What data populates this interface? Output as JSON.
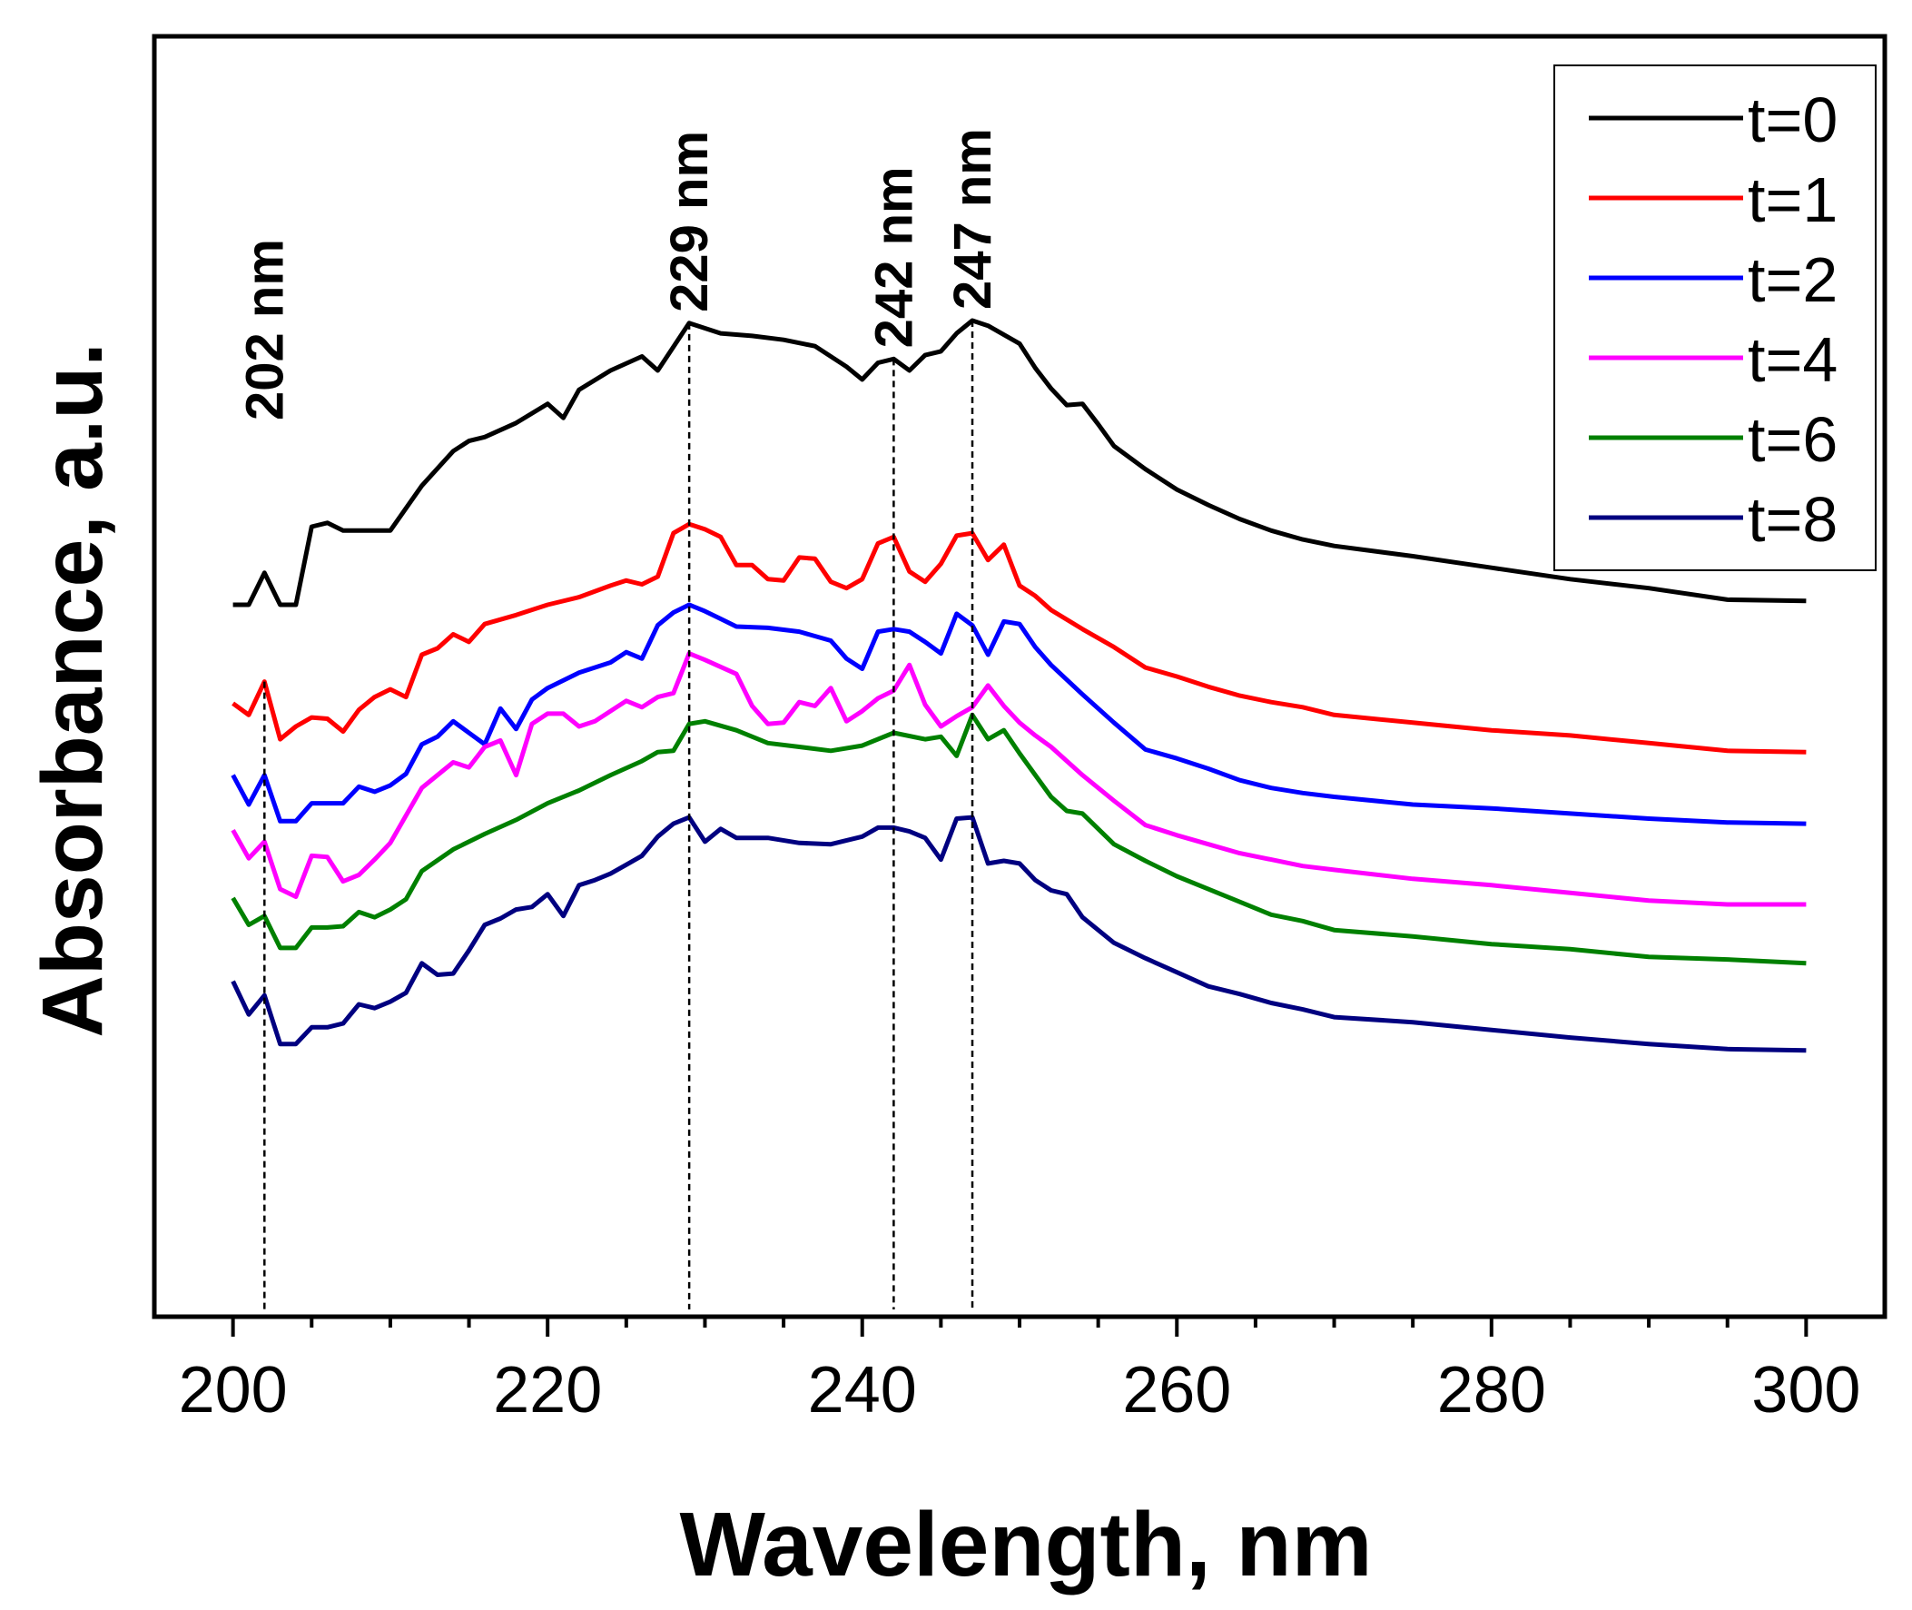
{
  "chart_data": {
    "type": "line",
    "title": "",
    "xlabel": "Wavelength, nm",
    "ylabel": "Absorbance, a.u.",
    "xlim": [
      195,
      305
    ],
    "ylim": [
      0,
      100
    ],
    "x_ticks": [
      200,
      220,
      240,
      260,
      280,
      300
    ],
    "x_tick_labels": [
      "200",
      "220",
      "240",
      "260",
      "280",
      "300"
    ],
    "y_ticks_shown": false,
    "legend_position": "top-right",
    "annotations": [
      {
        "label": "202 nm",
        "x": 202
      },
      {
        "label": "229 nm",
        "x": 229
      },
      {
        "label": "242 nm",
        "x": 242
      },
      {
        "label": "247 nm",
        "x": 247
      }
    ],
    "series": [
      {
        "name": "t=0",
        "color": "#000000",
        "x": [
          200,
          201,
          202,
          203,
          204,
          205,
          206,
          207,
          208,
          210,
          212,
          214,
          215,
          216,
          218,
          220,
          221,
          222,
          224,
          226,
          227,
          229,
          231,
          233,
          235,
          237,
          239,
          240,
          241,
          242,
          243,
          244,
          245,
          246,
          247,
          248,
          250,
          251,
          252,
          253,
          254,
          255,
          256,
          258,
          260,
          262,
          264,
          266,
          268,
          270,
          275,
          280,
          285,
          290,
          295,
          300
        ],
        "y": [
          55.6,
          55.6,
          58.1,
          55.6,
          55.6,
          61.7,
          62.0,
          61.4,
          61.4,
          61.4,
          64.9,
          67.6,
          68.4,
          68.7,
          69.8,
          71.3,
          70.2,
          72.4,
          73.9,
          75.0,
          73.9,
          77.6,
          76.8,
          76.6,
          76.3,
          75.8,
          74.2,
          73.2,
          74.5,
          74.8,
          73.9,
          75.1,
          75.4,
          76.8,
          77.8,
          77.4,
          76.0,
          74.1,
          72.5,
          71.2,
          71.3,
          69.7,
          68.0,
          66.2,
          64.6,
          63.4,
          62.3,
          61.4,
          60.7,
          60.2,
          59.4,
          58.5,
          57.6,
          56.9,
          56.0,
          55.9
        ]
      },
      {
        "name": "t=1",
        "color": "#ff0000",
        "x": [
          200,
          201,
          202,
          203,
          204,
          205,
          206,
          207,
          208,
          209,
          210,
          211,
          212,
          213,
          214,
          215,
          216,
          218,
          220,
          222,
          224,
          225,
          226,
          227,
          228,
          229,
          230,
          231,
          232,
          233,
          234,
          235,
          236,
          237,
          238,
          239,
          240,
          241,
          242,
          243,
          244,
          245,
          246,
          247,
          248,
          249,
          250,
          251,
          252,
          254,
          256,
          258,
          260,
          262,
          264,
          266,
          268,
          270,
          275,
          280,
          285,
          290,
          295,
          300
        ],
        "y": [
          47.9,
          47.0,
          49.6,
          45.1,
          46.1,
          46.8,
          46.7,
          45.7,
          47.4,
          48.4,
          49.0,
          48.4,
          51.7,
          52.2,
          53.3,
          52.7,
          54.1,
          54.8,
          55.6,
          56.2,
          57.1,
          57.5,
          57.2,
          57.8,
          61.2,
          61.9,
          61.5,
          60.9,
          58.7,
          58.7,
          57.6,
          57.5,
          59.3,
          59.2,
          57.4,
          56.9,
          57.6,
          60.4,
          60.9,
          58.2,
          57.4,
          58.8,
          61.0,
          61.2,
          59.1,
          60.3,
          57.1,
          56.3,
          55.2,
          53.7,
          52.3,
          50.7,
          50.0,
          49.2,
          48.5,
          48.0,
          47.6,
          47.0,
          46.4,
          45.8,
          45.4,
          44.8,
          44.2,
          44.1
        ]
      },
      {
        "name": "t=2",
        "color": "#0000ff",
        "x": [
          200,
          201,
          202,
          203,
          204,
          205,
          206,
          207,
          208,
          209,
          210,
          211,
          212,
          213,
          214,
          215,
          216,
          217,
          218,
          219,
          220,
          222,
          224,
          225,
          226,
          227,
          228,
          229,
          230,
          231,
          232,
          234,
          236,
          238,
          239,
          240,
          241,
          242,
          243,
          244,
          245,
          246,
          247,
          248,
          249,
          250,
          251,
          252,
          254,
          256,
          258,
          260,
          262,
          264,
          266,
          268,
          270,
          275,
          280,
          285,
          290,
          295,
          300
        ],
        "y": [
          42.3,
          40.0,
          42.3,
          38.7,
          38.7,
          40.1,
          40.1,
          40.1,
          41.4,
          41.0,
          41.5,
          42.4,
          44.7,
          45.3,
          46.5,
          45.6,
          44.7,
          47.5,
          45.9,
          48.2,
          49.1,
          50.3,
          51.1,
          51.9,
          51.4,
          54.0,
          55.0,
          55.6,
          55.1,
          54.5,
          53.9,
          53.8,
          53.5,
          52.8,
          51.4,
          50.6,
          53.5,
          53.7,
          53.5,
          52.7,
          51.8,
          54.9,
          54.0,
          51.7,
          54.3,
          54.1,
          52.3,
          50.9,
          48.6,
          46.4,
          44.3,
          43.6,
          42.8,
          41.9,
          41.3,
          40.9,
          40.6,
          40.0,
          39.7,
          39.3,
          38.9,
          38.6,
          38.5
        ]
      },
      {
        "name": "t=4",
        "color": "#ff00ff",
        "x": [
          200,
          201,
          202,
          203,
          204,
          205,
          206,
          207,
          208,
          209,
          210,
          212,
          214,
          215,
          216,
          217,
          218,
          219,
          220,
          221,
          222,
          223,
          225,
          226,
          227,
          228,
          229,
          230,
          232,
          233,
          234,
          235,
          236,
          237,
          238,
          239,
          240,
          241,
          242,
          243,
          244,
          245,
          246,
          247,
          248,
          249,
          250,
          251,
          252,
          254,
          256,
          258,
          260,
          262,
          264,
          266,
          268,
          270,
          275,
          280,
          285,
          290,
          295,
          300
        ],
        "y": [
          38.0,
          35.8,
          37.1,
          33.4,
          32.8,
          36.0,
          35.9,
          34.0,
          34.5,
          35.7,
          37.0,
          41.3,
          43.3,
          42.9,
          44.5,
          45.0,
          42.3,
          46.3,
          47.1,
          47.1,
          46.1,
          46.5,
          48.1,
          47.6,
          48.4,
          48.7,
          51.8,
          51.3,
          50.2,
          47.7,
          46.3,
          46.4,
          48.0,
          47.7,
          49.1,
          46.5,
          47.3,
          48.3,
          48.9,
          50.9,
          47.8,
          46.1,
          46.9,
          47.6,
          49.3,
          47.7,
          46.4,
          45.4,
          44.5,
          42.3,
          40.3,
          38.4,
          37.6,
          36.9,
          36.2,
          35.7,
          35.2,
          34.9,
          34.2,
          33.7,
          33.1,
          32.5,
          32.2,
          32.2
        ]
      },
      {
        "name": "t=6",
        "color": "#008000",
        "x": [
          200,
          201,
          202,
          203,
          204,
          205,
          206,
          207,
          208,
          209,
          210,
          211,
          212,
          214,
          216,
          218,
          220,
          222,
          224,
          226,
          227,
          228,
          229,
          230,
          232,
          234,
          236,
          238,
          240,
          242,
          244,
          245,
          246,
          247,
          248,
          249,
          250,
          252,
          253,
          254,
          256,
          258,
          260,
          262,
          264,
          266,
          268,
          270,
          275,
          280,
          285,
          290,
          295,
          300
        ],
        "y": [
          32.7,
          30.6,
          31.3,
          28.8,
          28.8,
          30.4,
          30.4,
          30.5,
          31.6,
          31.2,
          31.8,
          32.6,
          34.8,
          36.5,
          37.7,
          38.8,
          40.1,
          41.1,
          42.3,
          43.4,
          44.1,
          44.2,
          46.3,
          46.5,
          45.8,
          44.8,
          44.5,
          44.2,
          44.6,
          45.6,
          45.1,
          45.3,
          43.8,
          47.0,
          45.1,
          45.8,
          44.0,
          40.6,
          39.5,
          39.3,
          36.9,
          35.6,
          34.4,
          33.4,
          32.4,
          31.4,
          30.9,
          30.2,
          29.7,
          29.1,
          28.7,
          28.1,
          27.9,
          27.6
        ]
      },
      {
        "name": "t=8",
        "color": "#000080",
        "x": [
          200,
          201,
          202,
          203,
          204,
          205,
          206,
          207,
          208,
          209,
          210,
          211,
          212,
          213,
          214,
          215,
          216,
          217,
          218,
          219,
          220,
          221,
          222,
          223,
          224,
          225,
          226,
          227,
          228,
          229,
          230,
          231,
          232,
          234,
          236,
          238,
          240,
          241,
          242,
          243,
          244,
          245,
          246,
          247,
          248,
          249,
          250,
          251,
          252,
          253,
          254,
          256,
          258,
          260,
          262,
          264,
          266,
          268,
          270,
          275,
          280,
          285,
          290,
          295,
          300
        ],
        "y": [
          26.2,
          23.6,
          25.1,
          21.3,
          21.3,
          22.6,
          22.6,
          22.9,
          24.4,
          24.1,
          24.6,
          25.3,
          27.6,
          26.7,
          26.8,
          28.6,
          30.6,
          31.1,
          31.8,
          32.0,
          33.0,
          31.3,
          33.7,
          34.1,
          34.6,
          35.3,
          36.0,
          37.5,
          38.5,
          39.0,
          37.1,
          38.1,
          37.4,
          37.4,
          37.0,
          36.9,
          37.5,
          38.2,
          38.2,
          37.9,
          37.4,
          35.7,
          38.9,
          39.0,
          35.4,
          35.6,
          35.4,
          34.1,
          33.3,
          33.0,
          31.2,
          29.2,
          28.0,
          26.9,
          25.8,
          25.2,
          24.5,
          24.0,
          23.4,
          23.0,
          22.4,
          21.8,
          21.3,
          20.9,
          20.8
        ]
      }
    ]
  }
}
